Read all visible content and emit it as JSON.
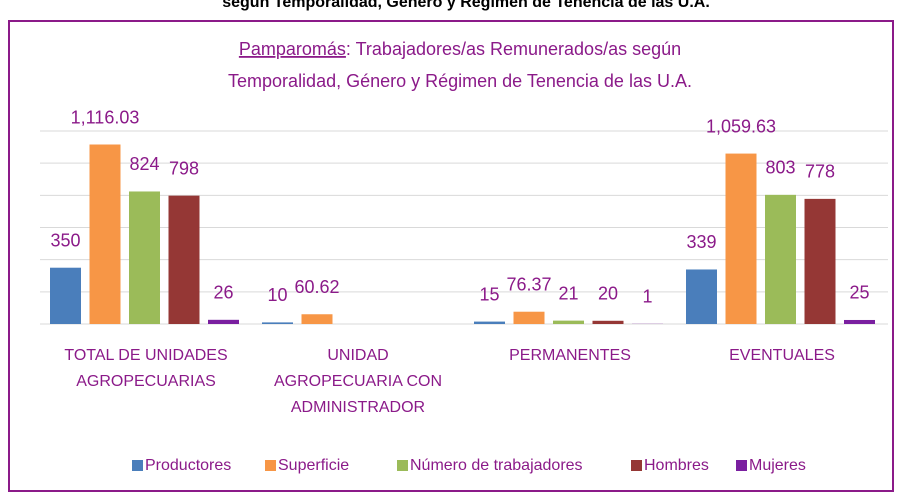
{
  "header_title": "según Temporalidad, Género y Régimen de Tenencia de las U.A.",
  "chart_data": {
    "type": "bar",
    "title": [
      "Pamparomás",
      ": Trabajadores/as Remunerados/as según",
      "Temporalidad, Género y Régimen de Tenencia de las U.A."
    ],
    "categories": [
      [
        "TOTAL DE UNIDADES",
        "AGROPECUARIAS"
      ],
      [
        "UNIDAD",
        "AGROPECUARIA CON",
        "ADMINISTRADOR"
      ],
      [
        "PERMANENTES"
      ],
      [
        "EVENTUALES"
      ]
    ],
    "series": [
      {
        "name": "Productores",
        "color": "#4a7ebb",
        "values": [
          350,
          10,
          15,
          339
        ]
      },
      {
        "name": "Superficie",
        "color": "#f79646",
        "values": [
          1116.03,
          60.62,
          76.37,
          1059.63
        ],
        "value_labels": [
          "1,116.03",
          "60.62",
          "76.37",
          "1,059.63"
        ]
      },
      {
        "name": "Número de trabajadores",
        "color": "#9bbb59",
        "values": [
          824,
          null,
          21,
          803
        ]
      },
      {
        "name": "Hombres",
        "color": "#953735",
        "values": [
          798,
          null,
          20,
          778
        ]
      },
      {
        "name": "Mujeres",
        "color": "#7a1fa0",
        "values": [
          26,
          null,
          1,
          25
        ]
      }
    ],
    "ylim": [
      0,
      1200
    ],
    "yticks": [
      0,
      200,
      400,
      600,
      800,
      1000,
      1200
    ],
    "grid": true,
    "legend": "bottom"
  }
}
